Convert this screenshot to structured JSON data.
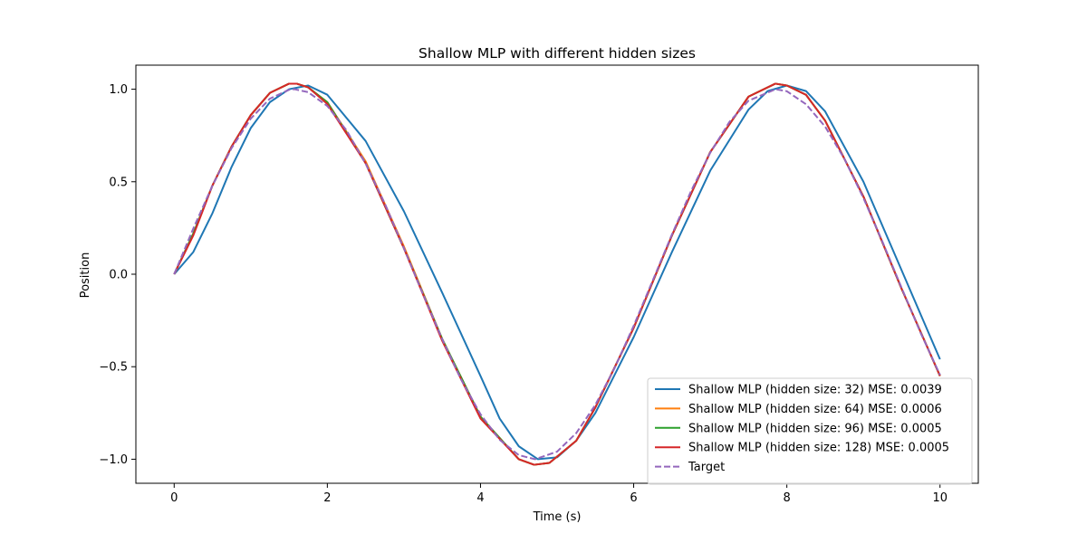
{
  "chart_data": {
    "type": "line",
    "title": "Shallow MLP with different hidden sizes",
    "xlabel": "Time (s)",
    "ylabel": "Position",
    "xlim": [
      -0.5,
      10.5
    ],
    "ylim": [
      -1.13,
      1.13
    ],
    "xticks": [
      0,
      2,
      4,
      6,
      8,
      10
    ],
    "xtick_labels": [
      "0",
      "2",
      "4",
      "6",
      "8",
      "10"
    ],
    "yticks": [
      -1.0,
      -0.5,
      0.0,
      0.5,
      1.0
    ],
    "ytick_labels": [
      "−1.0",
      "−0.5",
      "0.0",
      "0.5",
      "1.0"
    ],
    "grid": false,
    "legend_position": "lower-right",
    "series": [
      {
        "name": "Shallow MLP (hidden size: 32) MSE: 0.0039",
        "color": "#1f77b4",
        "dash": "solid",
        "x": [
          0,
          0.25,
          0.5,
          0.75,
          1.0,
          1.25,
          1.5,
          1.75,
          2.0,
          2.5,
          3.0,
          3.5,
          4.0,
          4.25,
          4.5,
          4.75,
          5.0,
          5.25,
          5.5,
          6.0,
          6.5,
          7.0,
          7.5,
          7.75,
          8.0,
          8.25,
          8.5,
          9.0,
          9.5,
          10.0
        ],
        "y": [
          0.0,
          0.12,
          0.33,
          0.58,
          0.79,
          0.93,
          1.0,
          1.02,
          0.97,
          0.72,
          0.34,
          -0.1,
          -0.55,
          -0.78,
          -0.93,
          -1.0,
          -0.99,
          -0.9,
          -0.75,
          -0.34,
          0.12,
          0.56,
          0.89,
          0.99,
          1.02,
          0.99,
          0.88,
          0.5,
          0.02,
          -0.46
        ]
      },
      {
        "name": "Shallow MLP (hidden size: 64) MSE: 0.0006",
        "color": "#ff7f0e",
        "dash": "solid",
        "x": [
          0,
          0.25,
          0.5,
          0.75,
          1.0,
          1.25,
          1.5,
          1.6,
          1.75,
          2.0,
          2.5,
          3.0,
          3.5,
          4.0,
          4.5,
          4.7,
          4.9,
          5.25,
          5.5,
          6.0,
          6.5,
          7.0,
          7.5,
          7.85,
          8.0,
          8.25,
          8.5,
          9.0,
          9.5,
          10.0
        ],
        "y": [
          0.0,
          0.22,
          0.48,
          0.69,
          0.86,
          0.98,
          1.03,
          1.03,
          1.01,
          0.93,
          0.61,
          0.15,
          -0.35,
          -0.77,
          -1.0,
          -1.03,
          -1.02,
          -0.9,
          -0.72,
          -0.29,
          0.21,
          0.66,
          0.96,
          1.03,
          1.02,
          0.97,
          0.83,
          0.42,
          -0.08,
          -0.55
        ]
      },
      {
        "name": "Shallow MLP (hidden size: 96) MSE: 0.0005",
        "color": "#2ca02c",
        "dash": "solid",
        "x": [
          0,
          0.25,
          0.5,
          0.75,
          1.0,
          1.25,
          1.5,
          1.6,
          1.75,
          2.0,
          2.5,
          3.0,
          3.5,
          4.0,
          4.5,
          4.7,
          4.9,
          5.25,
          5.5,
          6.0,
          6.5,
          7.0,
          7.5,
          7.85,
          8.0,
          8.25,
          8.5,
          9.0,
          9.5,
          10.0
        ],
        "y": [
          0.0,
          0.22,
          0.48,
          0.69,
          0.86,
          0.98,
          1.03,
          1.03,
          1.01,
          0.93,
          0.6,
          0.14,
          -0.35,
          -0.77,
          -1.0,
          -1.03,
          -1.02,
          -0.9,
          -0.72,
          -0.29,
          0.21,
          0.66,
          0.96,
          1.03,
          1.02,
          0.97,
          0.83,
          0.42,
          -0.08,
          -0.55
        ]
      },
      {
        "name": "Shallow MLP (hidden size: 128) MSE: 0.0005",
        "color": "#d62728",
        "dash": "solid",
        "x": [
          0,
          0.25,
          0.5,
          0.75,
          1.0,
          1.25,
          1.5,
          1.6,
          1.75,
          2.0,
          2.5,
          3.0,
          3.5,
          4.0,
          4.5,
          4.7,
          4.9,
          5.25,
          5.5,
          6.0,
          6.5,
          7.0,
          7.5,
          7.85,
          8.0,
          8.25,
          8.5,
          9.0,
          9.5,
          10.0
        ],
        "y": [
          0.0,
          0.21,
          0.48,
          0.69,
          0.86,
          0.98,
          1.03,
          1.03,
          1.01,
          0.92,
          0.6,
          0.14,
          -0.36,
          -0.78,
          -1.0,
          -1.03,
          -1.02,
          -0.9,
          -0.72,
          -0.29,
          0.21,
          0.66,
          0.96,
          1.03,
          1.02,
          0.97,
          0.83,
          0.42,
          -0.08,
          -0.55
        ]
      },
      {
        "name": "Target",
        "color": "#9467bd",
        "dash": "dashed",
        "x": [
          0,
          0.25,
          0.5,
          0.75,
          1.0,
          1.25,
          1.5,
          1.5708,
          1.75,
          2.0,
          2.25,
          2.5,
          2.75,
          3.0,
          3.25,
          3.5,
          3.75,
          4.0,
          4.25,
          4.5,
          4.7124,
          5.0,
          5.25,
          5.5,
          5.75,
          6.0,
          6.25,
          6.5,
          6.75,
          7.0,
          7.25,
          7.5,
          7.854,
          8.0,
          8.25,
          8.5,
          8.75,
          9.0,
          9.25,
          9.5,
          9.75,
          10.0
        ],
        "y": [
          0.0,
          0.247,
          0.479,
          0.682,
          0.841,
          0.949,
          0.997,
          1.0,
          0.984,
          0.909,
          0.778,
          0.598,
          0.382,
          0.141,
          -0.108,
          -0.351,
          -0.572,
          -0.757,
          -0.895,
          -0.978,
          -1.0,
          -0.959,
          -0.859,
          -0.706,
          -0.508,
          -0.279,
          -0.033,
          0.215,
          0.45,
          0.657,
          0.823,
          0.938,
          1.0,
          0.989,
          0.919,
          0.798,
          0.625,
          0.412,
          0.174,
          -0.075,
          -0.32,
          -0.544
        ]
      }
    ]
  }
}
